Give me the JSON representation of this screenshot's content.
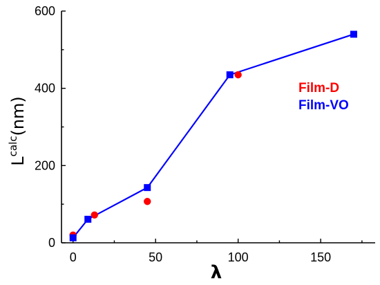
{
  "chart_data": {
    "type": "scatter",
    "xlabel": "λ",
    "ylabel": {
      "main": "L",
      "superscript": "calc",
      "unit": "(nm)"
    },
    "xlim": [
      -7,
      183
    ],
    "ylim": [
      0,
      600
    ],
    "xticks": [
      0,
      50,
      100,
      150
    ],
    "yticks": [
      0,
      200,
      400,
      600
    ],
    "x_minor_step": 25,
    "y_minor_step": 100,
    "grid": false,
    "legend_position": "right-middle",
    "series": [
      {
        "name": "Film-D",
        "color": "#ff0000",
        "marker": "circle",
        "line": false,
        "points": [
          [
            0,
            20
          ],
          [
            13,
            72
          ],
          [
            45,
            107
          ],
          [
            100,
            435
          ]
        ]
      },
      {
        "name": "Film-VO",
        "color": "#0000ff",
        "marker": "square",
        "line": true,
        "points": [
          [
            0,
            13
          ],
          [
            9,
            61
          ],
          [
            45,
            143
          ],
          [
            95,
            435
          ],
          [
            170,
            540
          ]
        ]
      }
    ]
  }
}
